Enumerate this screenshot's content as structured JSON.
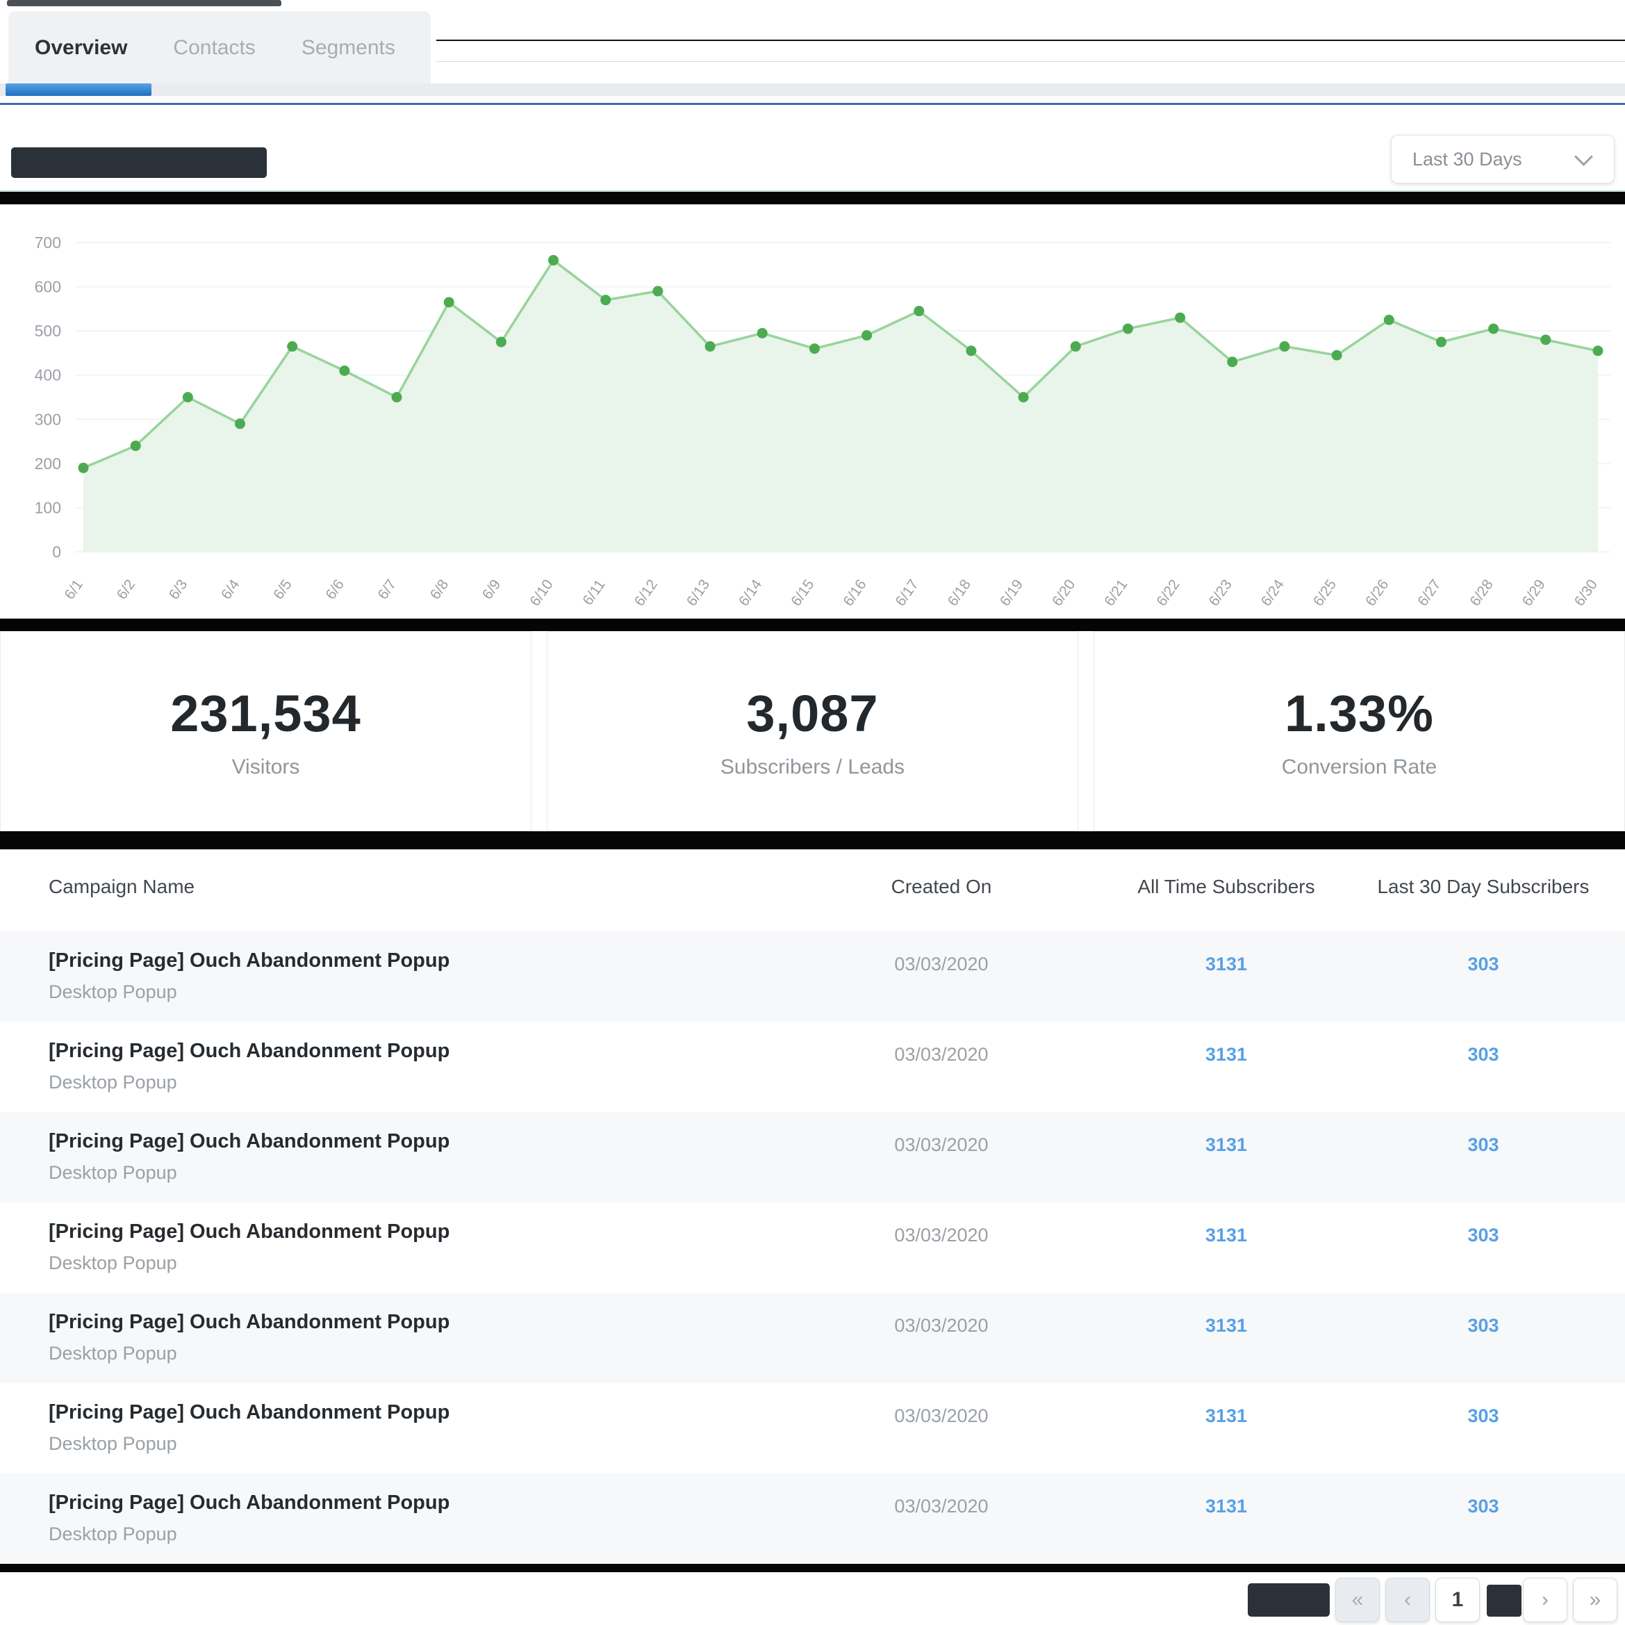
{
  "tabs": [
    {
      "label": "Overview",
      "active": true
    },
    {
      "label": "Contacts",
      "active": false
    },
    {
      "label": "Segments",
      "active": false
    }
  ],
  "chart_header": {
    "range_selected": "Last 30 Days"
  },
  "chart_data": {
    "type": "area",
    "title": "",
    "xlabel": "",
    "ylabel": "",
    "ylim": [
      0,
      700
    ],
    "yticks": [
      0,
      100,
      200,
      300,
      400,
      500,
      600,
      700
    ],
    "grid": true,
    "legend": "none",
    "categories": [
      "6/1",
      "6/2",
      "6/3",
      "6/4",
      "6/5",
      "6/6",
      "6/7",
      "6/8",
      "6/9",
      "6/10",
      "6/11",
      "6/12",
      "6/13",
      "6/14",
      "6/15",
      "6/16",
      "6/17",
      "6/18",
      "6/19",
      "6/20",
      "6/21",
      "6/22",
      "6/23",
      "6/24",
      "6/25",
      "6/26",
      "6/27",
      "6/28",
      "6/29",
      "6/30"
    ],
    "values": [
      190,
      240,
      350,
      290,
      465,
      410,
      350,
      565,
      475,
      660,
      570,
      590,
      465,
      495,
      460,
      490,
      545,
      455,
      350,
      465,
      505,
      530,
      430,
      465,
      445,
      525,
      475,
      505,
      480,
      455
    ]
  },
  "stats": [
    {
      "value": "231,534",
      "label": "Visitors"
    },
    {
      "value": "3,087",
      "label": "Subscribers / Leads"
    },
    {
      "value": "1.33%",
      "label": "Conversion Rate"
    }
  ],
  "table": {
    "columns": [
      "Campaign Name",
      "Created On",
      "All Time Subscribers",
      "Last 30 Day Subscribers"
    ],
    "rows": [
      {
        "name": "[Pricing Page] Ouch Abandonment Popup",
        "type": "Desktop Popup",
        "created": "03/03/2020",
        "all_time": "3131",
        "last_30": "303"
      },
      {
        "name": "[Pricing Page] Ouch Abandonment Popup",
        "type": "Desktop Popup",
        "created": "03/03/2020",
        "all_time": "3131",
        "last_30": "303"
      },
      {
        "name": "[Pricing Page] Ouch Abandonment Popup",
        "type": "Desktop Popup",
        "created": "03/03/2020",
        "all_time": "3131",
        "last_30": "303"
      },
      {
        "name": "[Pricing Page] Ouch Abandonment Popup",
        "type": "Desktop Popup",
        "created": "03/03/2020",
        "all_time": "3131",
        "last_30": "303"
      },
      {
        "name": "[Pricing Page] Ouch Abandonment Popup",
        "type": "Desktop Popup",
        "created": "03/03/2020",
        "all_time": "3131",
        "last_30": "303"
      },
      {
        "name": "[Pricing Page] Ouch Abandonment Popup",
        "type": "Desktop Popup",
        "created": "03/03/2020",
        "all_time": "3131",
        "last_30": "303"
      },
      {
        "name": "[Pricing Page] Ouch Abandonment Popup",
        "type": "Desktop Popup",
        "created": "03/03/2020",
        "all_time": "3131",
        "last_30": "303"
      }
    ]
  },
  "pagination": {
    "first": "«",
    "prev": "‹",
    "current_page": "1",
    "next": "›",
    "last": "»"
  },
  "colors": {
    "accent_blue": "#1f6fc0",
    "link_blue": "#57a0e5",
    "line_green": "#97d49b",
    "dot_green": "#4cab51",
    "fill_green": "#e9f4ea",
    "grid": "#f3f4f5",
    "axis_text": "#9aa0a6",
    "redaction": "#2b3138"
  }
}
